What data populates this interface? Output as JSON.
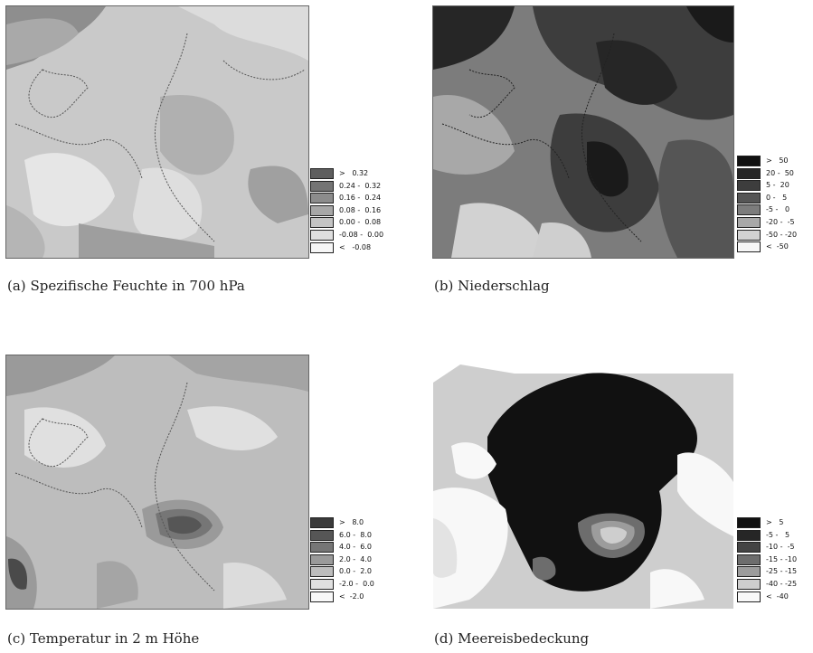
{
  "panels": [
    {
      "letter": "(a)",
      "caption": "Spezifische Feuchte in 700 hPa",
      "legend": [
        {
          "label": ">   0.32",
          "color": "#5e5e5e"
        },
        {
          "label": "0.24 -  0.32",
          "color": "#747474"
        },
        {
          "label": "0.16 -  0.24",
          "color": "#8c8c8c"
        },
        {
          "label": "0.08 -  0.16",
          "color": "#a7a7a7"
        },
        {
          "label": "0.00 -  0.08",
          "color": "#c4c4c4"
        },
        {
          "label": "-0.08 -  0.00",
          "color": "#dedede"
        },
        {
          "label": "<   -0.08",
          "color": "#f6f6f6"
        }
      ]
    },
    {
      "letter": "(b)",
      "caption": "Niederschlag",
      "legend": [
        {
          "label": ">   50",
          "color": "#111111"
        },
        {
          "label": "20 -  50",
          "color": "#262626"
        },
        {
          "label": "5 -  20",
          "color": "#3d3d3d"
        },
        {
          "label": "0 -   5",
          "color": "#555555"
        },
        {
          "label": "-5 -   0",
          "color": "#7c7c7c"
        },
        {
          "label": "-20 -  -5",
          "color": "#a8a8a8"
        },
        {
          "label": "-50 - -20",
          "color": "#d2d2d2"
        },
        {
          "label": "<  -50",
          "color": "#f6f6f6"
        }
      ]
    },
    {
      "letter": "(c)",
      "caption": "Temperatur in 2 m Höhe",
      "legend": [
        {
          "label": ">   8.0",
          "color": "#3a3a3a"
        },
        {
          "label": "6.0 -  8.0",
          "color": "#565656"
        },
        {
          "label": "4.0 -  6.0",
          "color": "#767676"
        },
        {
          "label": "2.0 -  4.0",
          "color": "#9a9a9a"
        },
        {
          "label": "0.0 -  2.0",
          "color": "#bdbdbd"
        },
        {
          "label": "-2.0 -  0.0",
          "color": "#e0e0e0"
        },
        {
          "label": "<  -2.0",
          "color": "#f8f8f8"
        }
      ]
    },
    {
      "letter": "(d)",
      "caption": "Meereisbedeckung",
      "legend": [
        {
          "label": ">   5",
          "color": "#111111"
        },
        {
          "label": "-5 -   5",
          "color": "#262626"
        },
        {
          "label": "-10 -  -5",
          "color": "#444444"
        },
        {
          "label": "-15 - -10",
          "color": "#6d6d6d"
        },
        {
          "label": "-25 - -15",
          "color": "#9c9c9c"
        },
        {
          "label": "-40 - -25",
          "color": "#cecece"
        },
        {
          "label": "<  -40",
          "color": "#f8f8f8"
        }
      ]
    }
  ]
}
